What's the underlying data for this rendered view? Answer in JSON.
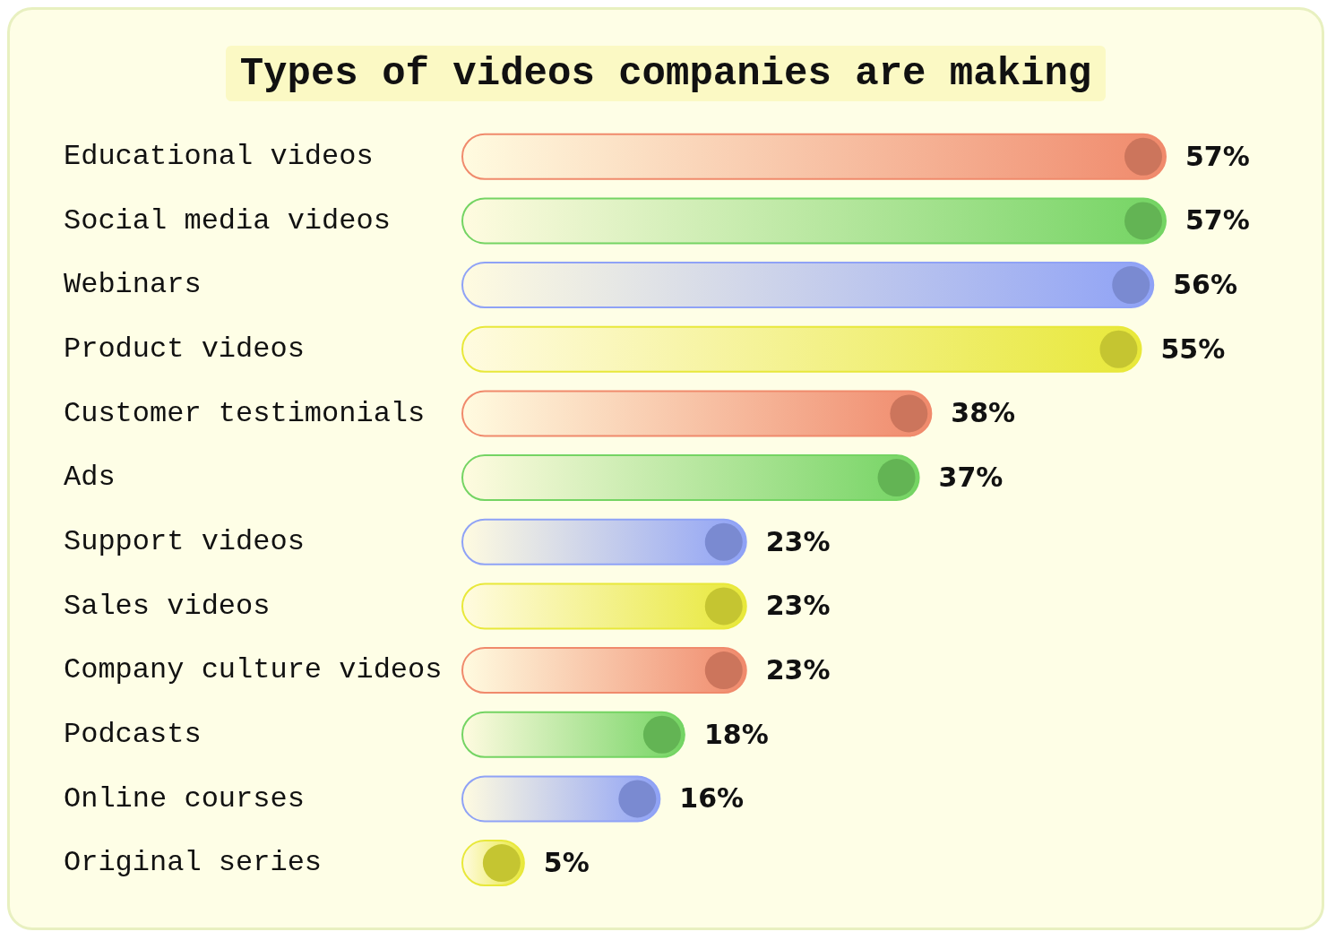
{
  "chart_data": {
    "type": "bar",
    "orientation": "horizontal",
    "title": "Types of videos companies are making",
    "categories": [
      "Educational videos",
      "Social media videos",
      "Webinars",
      "Product videos",
      "Customer testimonials",
      "Ads",
      "Support videos",
      "Sales videos",
      "Company culture videos",
      "Podcasts",
      "Online courses",
      "Original series"
    ],
    "values": [
      57,
      57,
      56,
      55,
      38,
      37,
      23,
      23,
      23,
      18,
      16,
      5
    ],
    "value_labels": [
      "57%",
      "57%",
      "56%",
      "55%",
      "38%",
      "37%",
      "23%",
      "23%",
      "23%",
      "18%",
      "16%",
      "5%"
    ],
    "colors": [
      "#f08a6c",
      "#74d463",
      "#8fa2f6",
      "#e8e83a",
      "#f08a6c",
      "#74d463",
      "#8fa2f6",
      "#e8e83a",
      "#f08a6c",
      "#74d463",
      "#8fa2f6",
      "#e8e83a"
    ],
    "grid": false,
    "legend": false
  }
}
